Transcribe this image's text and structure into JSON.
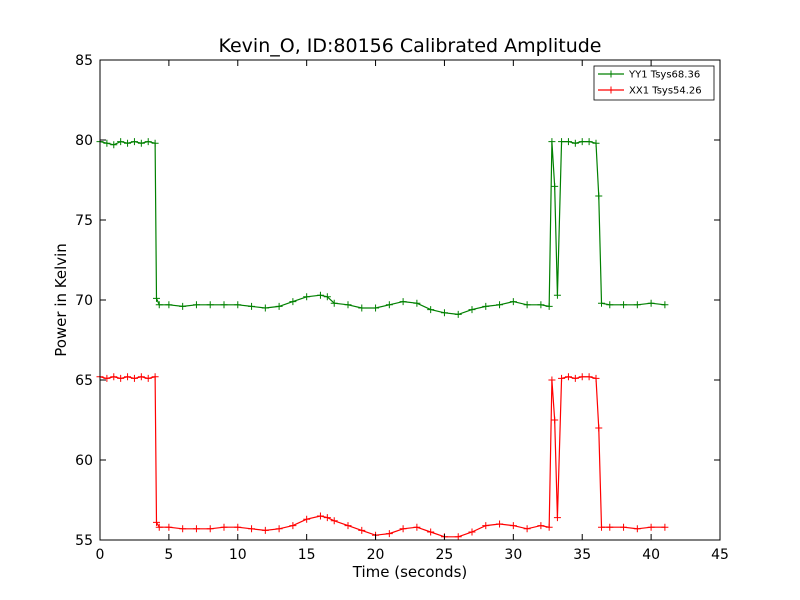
{
  "chart_data": {
    "type": "line",
    "title": "Kevin_O, ID:80156 Calibrated Amplitude",
    "xlabel": "Time (seconds)",
    "ylabel": "Power in Kelvin",
    "xlim": [
      0,
      45
    ],
    "ylim": [
      55,
      85
    ],
    "xticks": [
      "0",
      "5",
      "10",
      "15",
      "20",
      "25",
      "30",
      "35",
      "40",
      "45"
    ],
    "yticks": [
      "55",
      "60",
      "65",
      "70",
      "75",
      "80",
      "85"
    ],
    "grid": false,
    "legend_position": "top-right",
    "series": [
      {
        "name": "YY1 Tsys68.36",
        "color": "#008000",
        "marker": "plus",
        "points": [
          [
            0.0,
            79.9
          ],
          [
            0.5,
            79.8
          ],
          [
            1.0,
            79.7
          ],
          [
            1.5,
            79.9
          ],
          [
            2.0,
            79.8
          ],
          [
            2.5,
            79.9
          ],
          [
            3.0,
            79.8
          ],
          [
            3.5,
            79.9
          ],
          [
            4.0,
            79.8
          ],
          [
            4.1,
            70.1
          ],
          [
            4.3,
            69.7
          ],
          [
            5.0,
            69.7
          ],
          [
            6.0,
            69.6
          ],
          [
            7.0,
            69.7
          ],
          [
            8.0,
            69.7
          ],
          [
            9.0,
            69.7
          ],
          [
            10.0,
            69.7
          ],
          [
            11.0,
            69.6
          ],
          [
            12.0,
            69.5
          ],
          [
            13.0,
            69.6
          ],
          [
            14.0,
            69.9
          ],
          [
            15.0,
            70.2
          ],
          [
            16.0,
            70.3
          ],
          [
            16.5,
            70.2
          ],
          [
            17.0,
            69.8
          ],
          [
            18.0,
            69.7
          ],
          [
            19.0,
            69.5
          ],
          [
            20.0,
            69.5
          ],
          [
            21.0,
            69.7
          ],
          [
            22.0,
            69.9
          ],
          [
            23.0,
            69.8
          ],
          [
            24.0,
            69.4
          ],
          [
            25.0,
            69.2
          ],
          [
            26.0,
            69.1
          ],
          [
            27.0,
            69.4
          ],
          [
            28.0,
            69.6
          ],
          [
            29.0,
            69.7
          ],
          [
            30.0,
            69.9
          ],
          [
            31.0,
            69.7
          ],
          [
            32.0,
            69.7
          ],
          [
            32.6,
            69.6
          ],
          [
            32.8,
            79.9
          ],
          [
            33.0,
            77.1
          ],
          [
            33.2,
            70.3
          ],
          [
            33.5,
            79.9
          ],
          [
            34.0,
            79.9
          ],
          [
            34.5,
            79.8
          ],
          [
            35.0,
            79.9
          ],
          [
            35.5,
            79.9
          ],
          [
            36.0,
            79.8
          ],
          [
            36.2,
            76.5
          ],
          [
            36.4,
            69.8
          ],
          [
            37.0,
            69.7
          ],
          [
            38.0,
            69.7
          ],
          [
            39.0,
            69.7
          ],
          [
            40.0,
            69.8
          ],
          [
            41.0,
            69.7
          ]
        ]
      },
      {
        "name": "XX1 Tsys54.26",
        "color": "#ff0000",
        "marker": "plus",
        "points": [
          [
            0.0,
            65.2
          ],
          [
            0.5,
            65.1
          ],
          [
            1.0,
            65.2
          ],
          [
            1.5,
            65.1
          ],
          [
            2.0,
            65.2
          ],
          [
            2.5,
            65.1
          ],
          [
            3.0,
            65.2
          ],
          [
            3.5,
            65.1
          ],
          [
            4.0,
            65.2
          ],
          [
            4.1,
            56.1
          ],
          [
            4.3,
            55.8
          ],
          [
            5.0,
            55.8
          ],
          [
            6.0,
            55.7
          ],
          [
            7.0,
            55.7
          ],
          [
            8.0,
            55.7
          ],
          [
            9.0,
            55.8
          ],
          [
            10.0,
            55.8
          ],
          [
            11.0,
            55.7
          ],
          [
            12.0,
            55.6
          ],
          [
            13.0,
            55.7
          ],
          [
            14.0,
            55.9
          ],
          [
            15.0,
            56.3
          ],
          [
            16.0,
            56.5
          ],
          [
            16.5,
            56.4
          ],
          [
            17.0,
            56.2
          ],
          [
            18.0,
            55.9
          ],
          [
            19.0,
            55.6
          ],
          [
            20.0,
            55.3
          ],
          [
            21.0,
            55.4
          ],
          [
            22.0,
            55.7
          ],
          [
            23.0,
            55.8
          ],
          [
            24.0,
            55.5
          ],
          [
            25.0,
            55.2
          ],
          [
            26.0,
            55.2
          ],
          [
            27.0,
            55.5
          ],
          [
            28.0,
            55.9
          ],
          [
            29.0,
            56.0
          ],
          [
            30.0,
            55.9
          ],
          [
            31.0,
            55.7
          ],
          [
            32.0,
            55.9
          ],
          [
            32.6,
            55.8
          ],
          [
            32.8,
            65.0
          ],
          [
            33.0,
            62.5
          ],
          [
            33.2,
            56.4
          ],
          [
            33.5,
            65.1
          ],
          [
            34.0,
            65.2
          ],
          [
            34.5,
            65.1
          ],
          [
            35.0,
            65.2
          ],
          [
            35.5,
            65.2
          ],
          [
            36.0,
            65.1
          ],
          [
            36.2,
            62.0
          ],
          [
            36.4,
            55.8
          ],
          [
            37.0,
            55.8
          ],
          [
            38.0,
            55.8
          ],
          [
            39.0,
            55.7
          ],
          [
            40.0,
            55.8
          ],
          [
            41.0,
            55.8
          ]
        ]
      }
    ]
  }
}
